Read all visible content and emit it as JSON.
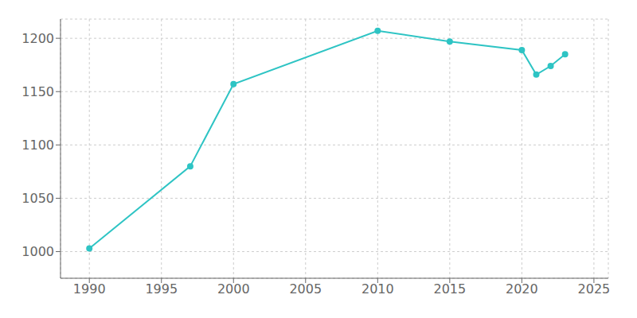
{
  "chart_data": {
    "type": "line",
    "x": [
      1990,
      1997,
      2000,
      2010,
      2015,
      2020,
      2021,
      2022,
      2023
    ],
    "values": [
      1003,
      1080,
      1157,
      1207,
      1197,
      1189,
      1166,
      1174,
      1185
    ],
    "color": "#2ec4c4",
    "marker": "circle",
    "xlim": [
      1988,
      2026
    ],
    "ylim": [
      975,
      1218
    ],
    "xticks": [
      1990,
      1995,
      2000,
      2005,
      2010,
      2015,
      2020,
      2025
    ],
    "yticks": [
      1000,
      1050,
      1100,
      1150,
      1200
    ],
    "grid": true
  }
}
